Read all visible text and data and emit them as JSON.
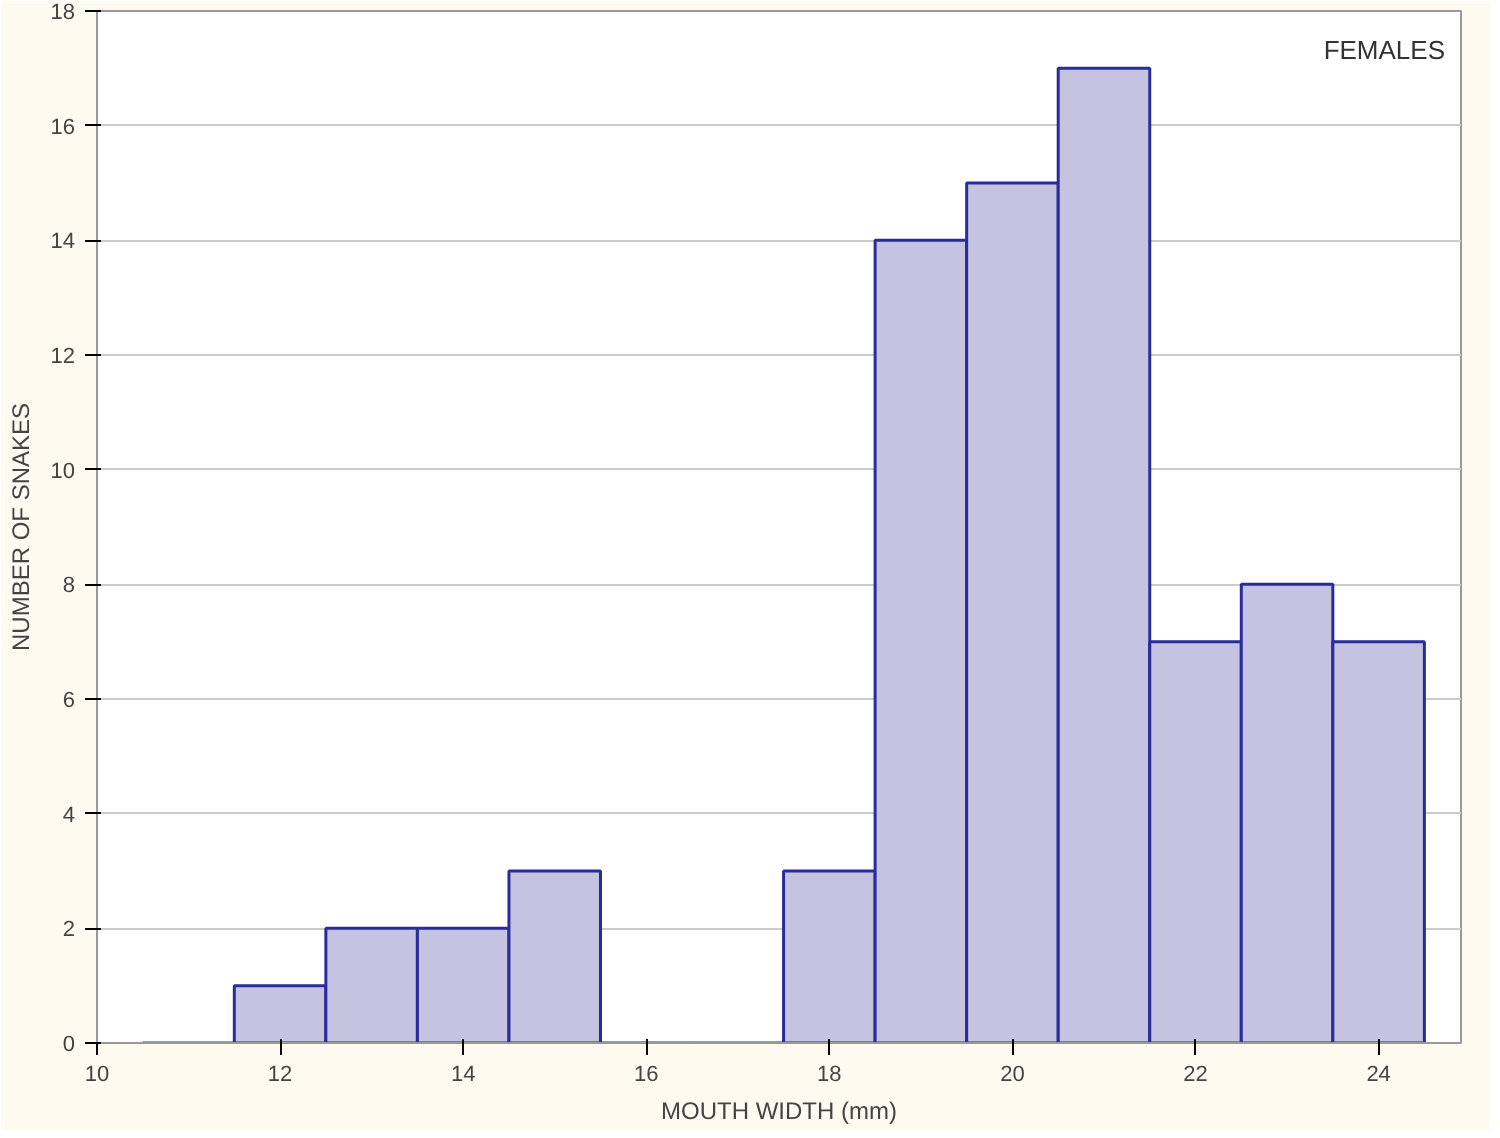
{
  "chart_data": {
    "type": "histogram",
    "xlabel": "MOUTH WIDTH (mm)",
    "ylabel": "NUMBER OF SNAKES",
    "annotations": [
      "FEMALES"
    ],
    "bins": [
      10.5,
      11.5,
      12.5,
      13.5,
      14.5,
      15.5,
      16.5,
      17.5,
      18.5,
      19.5,
      20.5,
      21.5,
      22.5,
      23.5,
      24.5
    ],
    "values": [
      0,
      1,
      2,
      2,
      3,
      0,
      0,
      3,
      14,
      15,
      17,
      7,
      8,
      7
    ],
    "colors": [
      "#2b2b9c",
      "#c4c4e0",
      "#c4c4e0",
      "#c4c4e0",
      "#c4c4e0",
      "#2b2b9c",
      "#2b2b9c",
      "#c4c4e0",
      "#c4c4e0",
      "#c4c4e0",
      "#c4c4e0",
      "#c4c4e0",
      "#c4c4e0",
      "#c4c4e0"
    ],
    "xlim": [
      10,
      24.9
    ],
    "ylim": [
      0,
      18
    ],
    "xticks": [
      10,
      12,
      14,
      16,
      18,
      20,
      22,
      24
    ],
    "yticks": [
      0,
      2,
      4,
      6,
      8,
      10,
      12,
      14,
      16,
      18
    ],
    "grid": "y"
  }
}
